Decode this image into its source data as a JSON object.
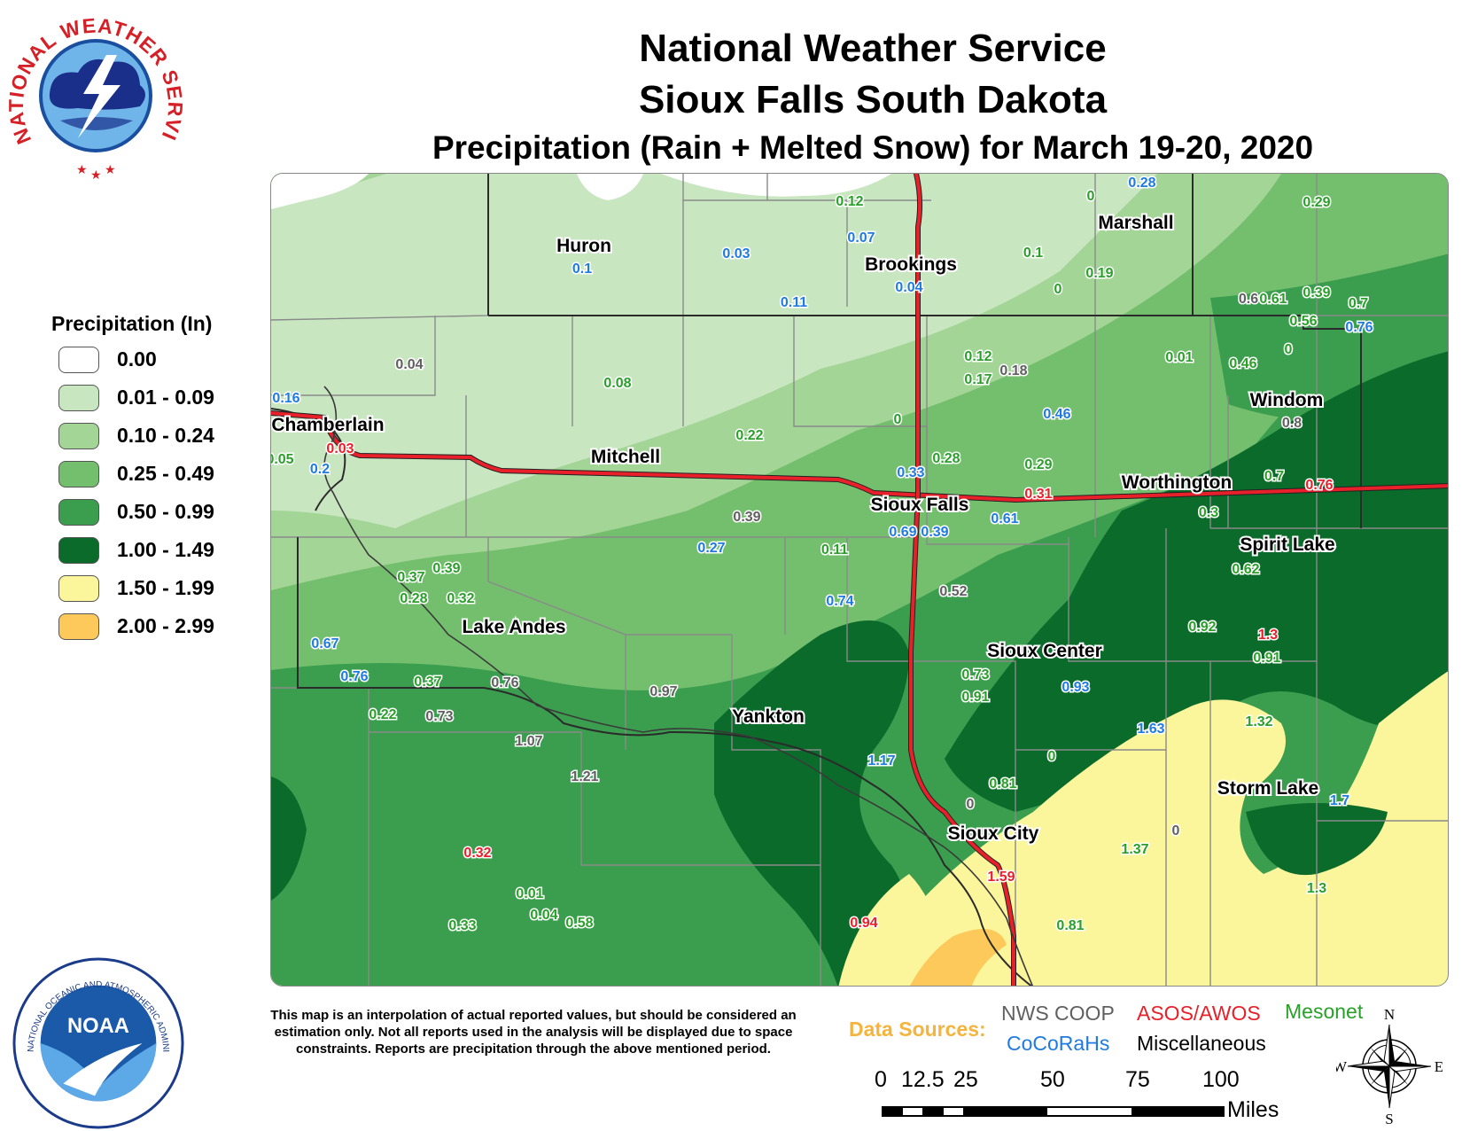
{
  "header": {
    "title_line1": "National Weather Service",
    "title_line2": "Sioux Falls South Dakota",
    "title_line3": "Precipitation (Rain + Melted Snow) for March 19-20, 2020"
  },
  "logos": {
    "nws_ring_text": "NATIONAL WEATHER SERVICE",
    "noaa_text": "NOAA",
    "noaa_ring_text": "NATIONAL OCEANIC AND ATMOSPHERIC ADMINISTRATION · U.S. DEPARTMENT OF COMMERCE"
  },
  "legend": {
    "title": "Precipitation (In)",
    "items": [
      {
        "label": "0.00",
        "color": "#ffffff"
      },
      {
        "label": "0.01 - 0.09",
        "color": "#c8e6c0"
      },
      {
        "label": "0.10 - 0.24",
        "color": "#a3d596"
      },
      {
        "label": "0.25 - 0.49",
        "color": "#74bf6e"
      },
      {
        "label": "0.50 - 0.99",
        "color": "#3a9e4e"
      },
      {
        "label": "1.00 - 1.49",
        "color": "#0b6b2a"
      },
      {
        "label": "1.50 - 1.99",
        "color": "#fbf59b"
      },
      {
        "label": "2.00 - 2.99",
        "color": "#fcc95a"
      }
    ]
  },
  "map": {
    "cities": {
      "huron": "Huron",
      "brookings": "Brookings",
      "marshall": "Marshall",
      "windom": "Windom",
      "chamberlain": "Chamberlain",
      "mitchell": "Mitchell",
      "sioux_falls": "Sioux Falls",
      "worthington": "Worthington",
      "spirit_lake": "Spirit Lake",
      "lake_andes": "Lake Andes",
      "sioux_center": "Sioux Center",
      "yankton": "Yankton",
      "storm_lake": "Storm Lake",
      "sioux_city": "Sioux City"
    },
    "reports": [
      {
        "value": "0.12",
        "source": "mesonet"
      },
      {
        "value": "0",
        "source": "mesonet"
      },
      {
        "value": "0.28",
        "source": "cocorahs"
      },
      {
        "value": "0.29",
        "source": "mesonet"
      },
      {
        "value": "0.07",
        "source": "cocorahs"
      },
      {
        "value": "0.03",
        "source": "cocorahs"
      },
      {
        "value": "0.1",
        "source": "cocorahs"
      },
      {
        "value": "0.1",
        "source": "mesonet"
      },
      {
        "value": "0.19",
        "source": "mesonet"
      },
      {
        "value": "0.04",
        "source": "cocorahs"
      },
      {
        "value": "0",
        "source": "mesonet"
      },
      {
        "value": "0.6",
        "source": "coop"
      },
      {
        "value": "0.61",
        "source": "mesonet"
      },
      {
        "value": "0.39",
        "source": "mesonet"
      },
      {
        "value": "0.7",
        "source": "mesonet"
      },
      {
        "value": "0.11",
        "source": "cocorahs"
      },
      {
        "value": "0.56",
        "source": "mesonet"
      },
      {
        "value": "0.76",
        "source": "cocorahs"
      },
      {
        "value": "0.04",
        "source": "coop"
      },
      {
        "value": "0.12",
        "source": "mesonet"
      },
      {
        "value": "0.18",
        "source": "coop"
      },
      {
        "value": "0.01",
        "source": "mesonet"
      },
      {
        "value": "0.46",
        "source": "mesonet"
      },
      {
        "value": "0",
        "source": "mesonet"
      },
      {
        "value": "0.16",
        "source": "cocorahs"
      },
      {
        "value": "0.08",
        "source": "mesonet"
      },
      {
        "value": "0.17",
        "source": "mesonet"
      },
      {
        "value": "0.46",
        "source": "cocorahs"
      },
      {
        "value": "0.8",
        "source": "coop"
      },
      {
        "value": "0",
        "source": "mesonet"
      },
      {
        "value": "0.22",
        "source": "mesonet"
      },
      {
        "value": "0.03",
        "source": "asos"
      },
      {
        "value": "0.05",
        "source": "mesonet"
      },
      {
        "value": "0.28",
        "source": "mesonet"
      },
      {
        "value": "0.29",
        "source": "mesonet"
      },
      {
        "value": "0.2",
        "source": "cocorahs"
      },
      {
        "value": "0.33",
        "source": "cocorahs"
      },
      {
        "value": "0.31",
        "source": "asos"
      },
      {
        "value": "0.7",
        "source": "mesonet"
      },
      {
        "value": "0.76",
        "source": "asos"
      },
      {
        "value": "0.39",
        "source": "coop"
      },
      {
        "value": "0.69",
        "source": "cocorahs"
      },
      {
        "value": "0.39",
        "source": "cocorahs"
      },
      {
        "value": "0.61",
        "source": "cocorahs"
      },
      {
        "value": "0.3",
        "source": "mesonet"
      },
      {
        "value": "0.27",
        "source": "cocorahs"
      },
      {
        "value": "0.11",
        "source": "mesonet"
      },
      {
        "value": "0.62",
        "source": "mesonet"
      },
      {
        "value": "0.37",
        "source": "mesonet"
      },
      {
        "value": "0.39",
        "source": "mesonet"
      },
      {
        "value": "0.28",
        "source": "mesonet"
      },
      {
        "value": "0.32",
        "source": "mesonet"
      },
      {
        "value": "0.52",
        "source": "coop"
      },
      {
        "value": "0.74",
        "source": "cocorahs"
      },
      {
        "value": "0.92",
        "source": "mesonet"
      },
      {
        "value": "1.3",
        "source": "asos"
      },
      {
        "value": "0.67",
        "source": "cocorahs"
      },
      {
        "value": "0.91",
        "source": "mesonet"
      },
      {
        "value": "0.73",
        "source": "mesonet"
      },
      {
        "value": "0.76",
        "source": "cocorahs"
      },
      {
        "value": "0.37",
        "source": "mesonet"
      },
      {
        "value": "0.76",
        "source": "coop"
      },
      {
        "value": "0.97",
        "source": "coop"
      },
      {
        "value": "0.91",
        "source": "mesonet"
      },
      {
        "value": "0.93",
        "source": "cocorahs"
      },
      {
        "value": "0.22",
        "source": "mesonet"
      },
      {
        "value": "0.73",
        "source": "coop"
      },
      {
        "value": "1.63",
        "source": "cocorahs"
      },
      {
        "value": "1.32",
        "source": "mesonet"
      },
      {
        "value": "1.07",
        "source": "coop"
      },
      {
        "value": "1.17",
        "source": "cocorahs"
      },
      {
        "value": "0",
        "source": "mesonet"
      },
      {
        "value": "1.21",
        "source": "coop"
      },
      {
        "value": "0.81",
        "source": "mesonet"
      },
      {
        "value": "0",
        "source": "coop"
      },
      {
        "value": "1.7",
        "source": "cocorahs"
      },
      {
        "value": "0",
        "source": "coop"
      },
      {
        "value": "0.32",
        "source": "asos"
      },
      {
        "value": "1.37",
        "source": "mesonet"
      },
      {
        "value": "1.59",
        "source": "asos"
      },
      {
        "value": "1.3",
        "source": "mesonet"
      },
      {
        "value": "0.01",
        "source": "mesonet"
      },
      {
        "value": "0.04",
        "source": "mesonet"
      },
      {
        "value": "0.58",
        "source": "mesonet"
      },
      {
        "value": "0.33",
        "source": "mesonet"
      },
      {
        "value": "0.94",
        "source": "asos"
      },
      {
        "value": "0.81",
        "source": "mesonet"
      }
    ]
  },
  "source_colors": {
    "coop": "#606060",
    "asos": "#e8202a",
    "mesonet": "#2aa02a",
    "cocorahs": "#1f7be0",
    "misc": "#000000"
  },
  "disclaimer": "This map is an interpolation of actual reported values, but should be considered an estimation only. Not all reports used in the analysis will be displayed due to space constraints. Reports are precipitation through the above mentioned period.",
  "data_sources": {
    "title": "Data Sources:",
    "nws_coop": "NWS COOP",
    "asos_awos": "ASOS/AWOS",
    "mesonet": "Mesonet",
    "cocorahs": "CoCoRaHs",
    "misc": "Miscellaneous"
  },
  "scale_bar": {
    "ticks": [
      "0",
      "12.5",
      "25",
      "50",
      "75",
      "100"
    ],
    "unit": "Miles"
  },
  "compass": {
    "n": "N",
    "e": "E",
    "s": "S",
    "w": "W"
  }
}
